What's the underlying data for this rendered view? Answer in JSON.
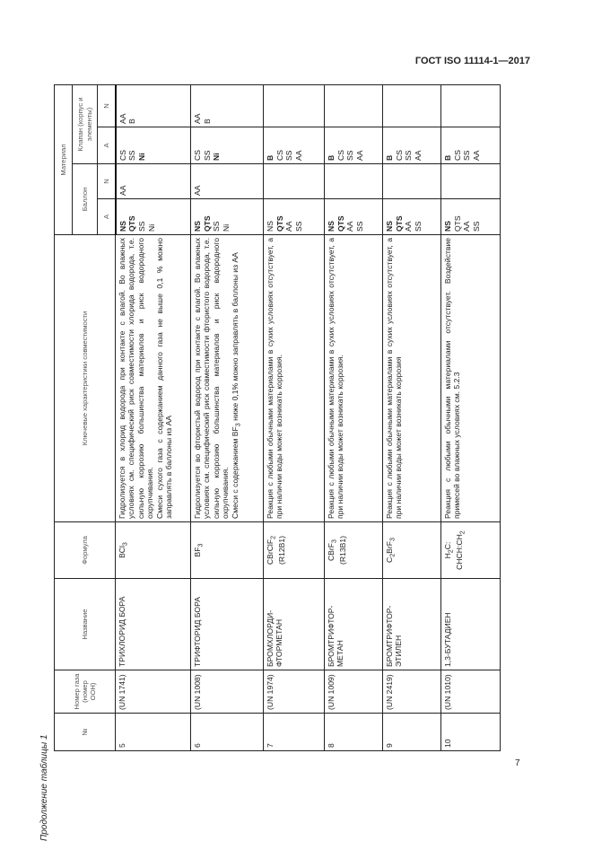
{
  "doc_title": "ГОСТ ISO 11114-1—2017",
  "page_number": "7",
  "caption": "Продолжение таблицы 1",
  "header": {
    "no": "№",
    "un": "Номер газа (номер ООН)",
    "name": "Название",
    "formula": "Формула",
    "chars": "Ключевые характеристики совместимости",
    "material": "Материал",
    "cylinder": "Баллон",
    "valve": "Клапан (корпус и элементы)",
    "a": "А",
    "n": "N"
  },
  "rows": [
    {
      "no": "5",
      "un": "(UN 1741)",
      "name": "ТРИХЛОРИД БОРА",
      "formula": [
        [
          {
            "t": "BCl"
          },
          {
            "t": "3",
            "sub": true
          }
        ]
      ],
      "chars": [
        [
          {
            "t": "Гидролизуется в хлорид водорода при контакте с влагой. Во влажных условиях см. специфический риск совместимости хлорида водорода, т.е. сильную коррозию большинства материалов и риск водородного охрупчивания."
          }
        ],
        [
          {
            "t": "Смеси сухого газа с содержанием данного газа не выше 0,1 % можно заправлять в баллоны из АА"
          }
        ]
      ],
      "cyl_a": [
        {
          "t": "NS",
          "b": true
        },
        {
          "t": "QTS",
          "b": true
        },
        {
          "t": "SS"
        },
        {
          "t": "Ni"
        }
      ],
      "cyl_n": [
        {
          "t": "AA"
        }
      ],
      "val_a": [
        {
          "t": "CS"
        },
        {
          "t": "SS"
        },
        {
          "t": "Ni",
          "b": true
        }
      ],
      "val_n": [
        {
          "t": "AA"
        },
        {
          "t": "B"
        }
      ]
    },
    {
      "no": "6",
      "un": "(UN 1008)",
      "name": "ТРИФТОРИД БОРА",
      "formula": [
        [
          {
            "t": "BF"
          },
          {
            "t": "3",
            "sub": true
          }
        ]
      ],
      "chars": [
        [
          {
            "t": "Гидролизуется во фтористый водород при контакте с влагой. Во влажных условиях см. специфический риск совместимости фтористого водорода, т.е. сильную коррозию большинства материалов и риск водородного охрупчивания."
          }
        ],
        [
          {
            "t": "Смеси с содержанием BF"
          },
          {
            "t": "3",
            "sub": true
          },
          {
            "t": " ниже 0,1% можно заправлять в баллоны из АА"
          }
        ]
      ],
      "cyl_a": [
        {
          "t": "NS",
          "b": true
        },
        {
          "t": "QTS",
          "b": true
        },
        {
          "t": "SS"
        },
        {
          "t": "Ni"
        }
      ],
      "cyl_n": [
        {
          "t": "AA"
        }
      ],
      "val_a": [
        {
          "t": "CS"
        },
        {
          "t": "SS"
        },
        {
          "t": "Ni",
          "b": true
        }
      ],
      "val_n": [
        {
          "t": "AA"
        },
        {
          "t": "B"
        }
      ]
    },
    {
      "no": "7",
      "un": "(UN 1974)",
      "name": "БРОМХЛОРДИ-ФТОРМЕТАН",
      "formula": [
        [
          {
            "t": "CBrClF"
          },
          {
            "t": "2",
            "sub": true
          }
        ],
        [
          {
            "t": "(R12B1)"
          }
        ]
      ],
      "chars": [
        [
          {
            "t": "Реакция с любыми обычными материалами в сухих условиях отсутствует, а при наличии воды может возникать коррозия."
          }
        ]
      ],
      "cyl_a": [
        {
          "t": "NS"
        },
        {
          "t": "QTS",
          "b": true
        },
        {
          "t": "AA"
        },
        {
          "t": "SS"
        }
      ],
      "cyl_n": [],
      "val_a": [
        {
          "t": "B",
          "b": true
        },
        {
          "t": "CS"
        },
        {
          "t": "SS"
        },
        {
          "t": "AA"
        }
      ],
      "val_n": []
    },
    {
      "no": "8",
      "un": "(UN 1009)",
      "name": "БРОМТРИФТОР-МЕТАН",
      "formula": [
        [
          {
            "t": "CBrF"
          },
          {
            "t": "3",
            "sub": true
          }
        ],
        [
          {
            "t": "(R13B1)"
          }
        ]
      ],
      "chars": [
        [
          {
            "t": "Реакция с любыми обычными материалами в сухих условиях отсутствует, а при наличии воды может возникать коррозия."
          }
        ]
      ],
      "cyl_a": [
        {
          "t": "NS",
          "b": true
        },
        {
          "t": "QTS",
          "b": true
        },
        {
          "t": "AA"
        },
        {
          "t": "SS"
        }
      ],
      "cyl_n": [],
      "val_a": [
        {
          "t": "B",
          "b": true
        },
        {
          "t": "CS"
        },
        {
          "t": "SS"
        },
        {
          "t": "AA"
        }
      ],
      "val_n": []
    },
    {
      "no": "9",
      "un": "(UN 2419)",
      "name": "БРОМТРИФТОР-ЭТИЛЕН",
      "formula": [
        [
          {
            "t": "C"
          },
          {
            "t": "2",
            "sub": true
          },
          {
            "t": "BrF"
          },
          {
            "t": "3",
            "sub": true
          }
        ]
      ],
      "chars": [
        [
          {
            "t": "Реакция с любыми обычными материалами в сухих условиях отсутствует, а при наличии воды может возникать коррозия"
          }
        ]
      ],
      "cyl_a": [
        {
          "t": "NS",
          "b": true
        },
        {
          "t": "QTS",
          "b": true
        },
        {
          "t": "AA"
        },
        {
          "t": "SS"
        }
      ],
      "cyl_n": [],
      "val_a": [
        {
          "t": "B",
          "b": true
        },
        {
          "t": "CS"
        },
        {
          "t": "SS"
        },
        {
          "t": "AA"
        }
      ],
      "val_n": []
    },
    {
      "no": "10",
      "un": "(UN 1010)",
      "name": "1,3-БУТАДИЕН",
      "formula": [
        [
          {
            "t": "H"
          },
          {
            "t": "2",
            "sub": true
          },
          {
            "t": "C:"
          }
        ],
        [
          {
            "t": "CHCH:CH"
          },
          {
            "t": "2",
            "sub": true
          }
        ]
      ],
      "chars": [
        [
          {
            "t": "Реакция с любыми обычными материалами отсутствует. Воздействие примесей во влажных условиях см. 5.2.3"
          }
        ]
      ],
      "cyl_a": [
        {
          "t": "NS",
          "b": true
        },
        {
          "t": "QTS"
        },
        {
          "t": "AA"
        },
        {
          "t": "SS"
        }
      ],
      "cyl_n": [],
      "val_a": [
        {
          "t": "B",
          "b": true
        },
        {
          "t": "CS"
        },
        {
          "t": "SS"
        },
        {
          "t": "AA"
        }
      ],
      "val_n": []
    }
  ]
}
